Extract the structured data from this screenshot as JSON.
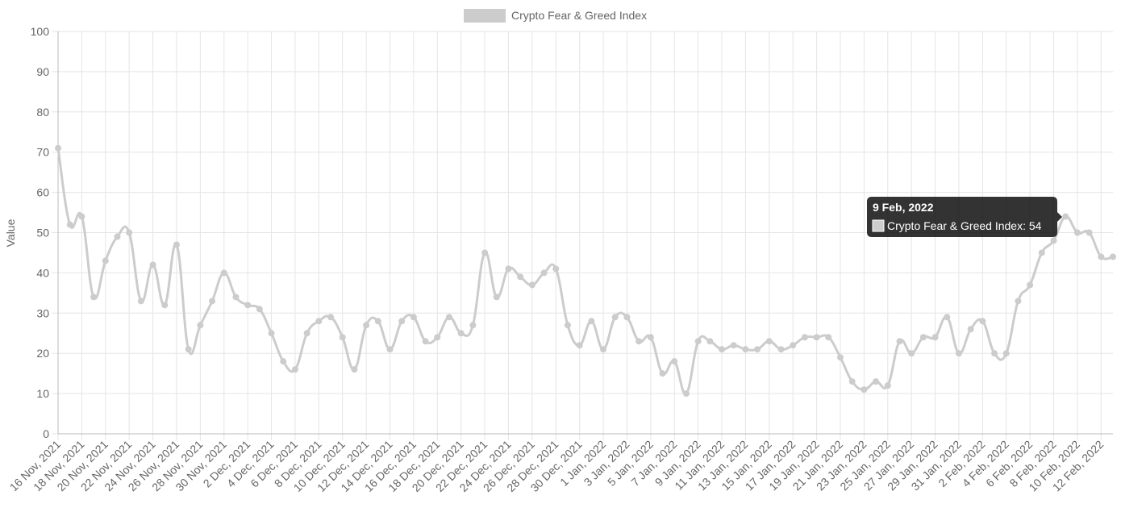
{
  "chart_data": {
    "type": "line",
    "y_axis_label": "Value",
    "categories": [
      "16 Nov, 2021",
      null,
      "18 Nov, 2021",
      null,
      "20 Nov, 2021",
      null,
      "22 Nov, 2021",
      null,
      "24 Nov, 2021",
      null,
      "26 Nov, 2021",
      null,
      "28 Nov, 2021",
      null,
      "30 Nov, 2021",
      null,
      "2 Dec, 2021",
      null,
      "4 Dec, 2021",
      null,
      "6 Dec, 2021",
      null,
      "8 Dec, 2021",
      null,
      "10 Dec, 2021",
      null,
      "12 Dec, 2021",
      null,
      "14 Dec, 2021",
      null,
      "16 Dec, 2021",
      null,
      "18 Dec, 2021",
      null,
      "20 Dec, 2021",
      null,
      "22 Dec, 2021",
      null,
      "24 Dec, 2021",
      null,
      "26 Dec, 2021",
      null,
      "28 Dec, 2021",
      null,
      "30 Dec, 2021",
      null,
      "1 Jan, 2022",
      null,
      "3 Jan, 2022",
      null,
      "5 Jan, 2022",
      null,
      "7 Jan, 2022",
      null,
      "9 Jan, 2022",
      null,
      "11 Jan, 2022",
      null,
      "13 Jan, 2022",
      null,
      "15 Jan, 2022",
      null,
      "17 Jan, 2022",
      null,
      "19 Jan, 2022",
      null,
      "21 Jan, 2022",
      null,
      "23 Jan, 2022",
      null,
      "25 Jan, 2022",
      null,
      "27 Jan, 2022",
      null,
      "29 Jan, 2022",
      null,
      "31 Jan, 2022",
      null,
      "2 Feb, 2022",
      null,
      "4 Feb, 2022",
      null,
      "6 Feb, 2022",
      null,
      "8 Feb, 2022",
      null,
      "10 Feb, 2022",
      null,
      "12 Feb, 2022",
      null
    ],
    "series": [
      {
        "name": "Crypto Fear & Greed Index",
        "color": "#cccccc",
        "values": [
          71,
          52,
          54,
          34,
          43,
          49,
          50,
          33,
          42,
          32,
          47,
          21,
          27,
          33,
          40,
          34,
          32,
          31,
          25,
          18,
          16,
          25,
          28,
          29,
          24,
          16,
          27,
          28,
          21,
          28,
          29,
          23,
          24,
          29,
          25,
          27,
          45,
          34,
          41,
          39,
          37,
          40,
          41,
          27,
          22,
          28,
          21,
          29,
          29,
          23,
          24,
          15,
          18,
          10,
          23,
          23,
          21,
          22,
          21,
          21,
          23,
          21,
          22,
          24,
          24,
          24,
          19,
          13,
          11,
          13,
          12,
          23,
          20,
          24,
          24,
          29,
          20,
          26,
          28,
          20,
          20,
          33,
          37,
          45,
          48,
          54,
          50,
          50,
          44,
          44
        ]
      }
    ],
    "ylim": [
      0,
      100
    ],
    "yticks": [
      0,
      10,
      20,
      30,
      40,
      50,
      60,
      70,
      80,
      90,
      100
    ],
    "grid": true,
    "legend": "top",
    "tooltip": {
      "title": "9 Feb, 2022",
      "text": "Crypto Fear & Greed Index: 54"
    }
  }
}
